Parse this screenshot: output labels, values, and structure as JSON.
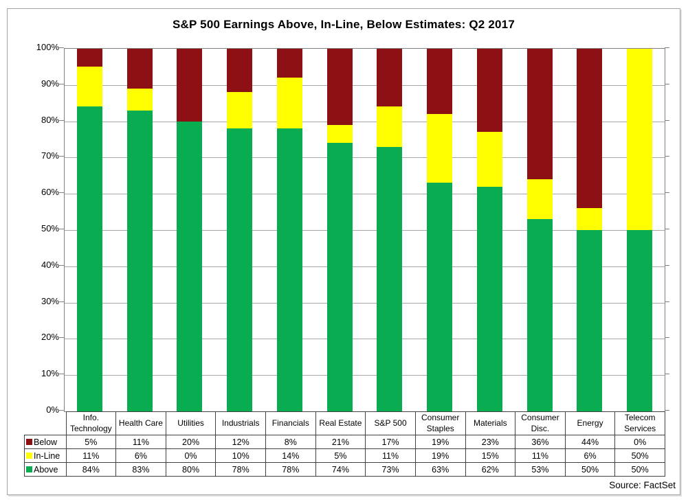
{
  "source": "Source: FactSet",
  "chart_data": {
    "type": "bar",
    "stacked": true,
    "title": "S&P 500 Earnings Above, In-Line, Below Estimates: Q2 2017",
    "categories": [
      "Info. Technology",
      "Health Care",
      "Utilities",
      "Industrials",
      "Financials",
      "Real Estate",
      "S&P 500",
      "Consumer Staples",
      "Materials",
      "Consumer Disc.",
      "Energy",
      "Telecom Services"
    ],
    "series": [
      {
        "name": "Below",
        "color": "#8c1014",
        "values": [
          5,
          11,
          20,
          12,
          8,
          21,
          17,
          19,
          23,
          36,
          44,
          0
        ]
      },
      {
        "name": "In-Line",
        "color": "#ffff00",
        "values": [
          11,
          6,
          0,
          10,
          14,
          5,
          11,
          19,
          15,
          11,
          6,
          50
        ]
      },
      {
        "name": "Above",
        "color": "#0aac52",
        "values": [
          84,
          83,
          80,
          78,
          78,
          74,
          73,
          63,
          62,
          53,
          50,
          50
        ]
      }
    ],
    "stack_order_bottom_to_top": [
      "Above",
      "In-Line",
      "Below"
    ],
    "table_rows_top_to_bottom": [
      "Below",
      "In-Line",
      "Above"
    ],
    "y_axis": {
      "min": 0,
      "max": 100,
      "step": 10,
      "unit": "%"
    },
    "grid": true,
    "legend_position": "table-left",
    "value_suffix": "%"
  }
}
